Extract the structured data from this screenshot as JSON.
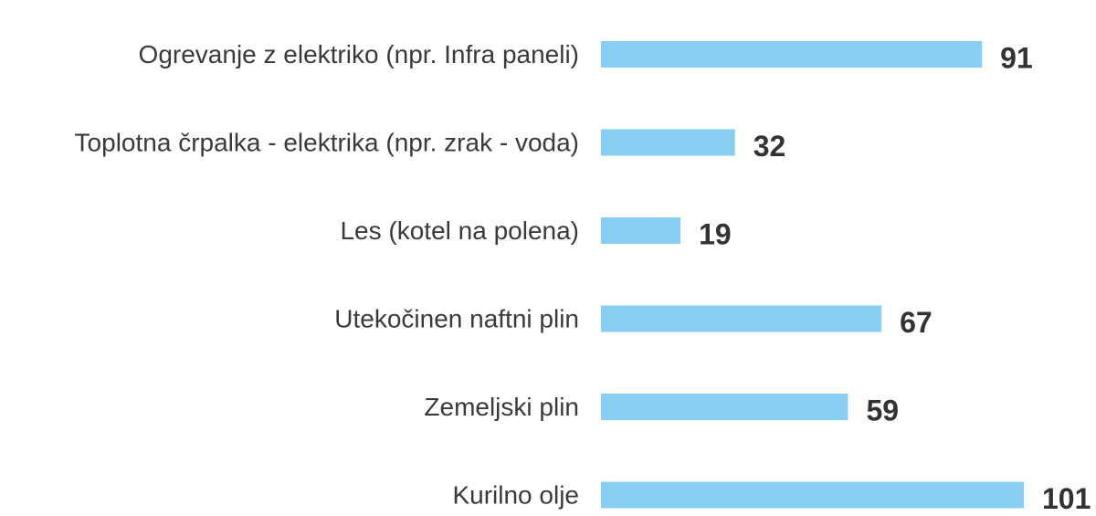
{
  "chart_data": {
    "type": "bar",
    "orientation": "horizontal",
    "categories": [
      "Ogrevanje z elektriko (npr. Infra paneli)",
      "Toplotna črpalka - elektrika (npr. zrak - voda)",
      "Les (kotel na polena)",
      "Utekočinen naftni plin",
      "Zemeljski plin",
      "Kurilno olje"
    ],
    "values": [
      91,
      32,
      19,
      67,
      59,
      101
    ],
    "value_labels": [
      "91",
      "32",
      "19",
      "67",
      "59",
      "101"
    ],
    "title": "",
    "xlabel": "",
    "ylabel": "",
    "xlim": [
      0,
      101
    ],
    "grid": false,
    "legend": "none",
    "bar_color": "#87CEF2",
    "label_color": "#3a3a3a",
    "value_color": "#333333"
  }
}
